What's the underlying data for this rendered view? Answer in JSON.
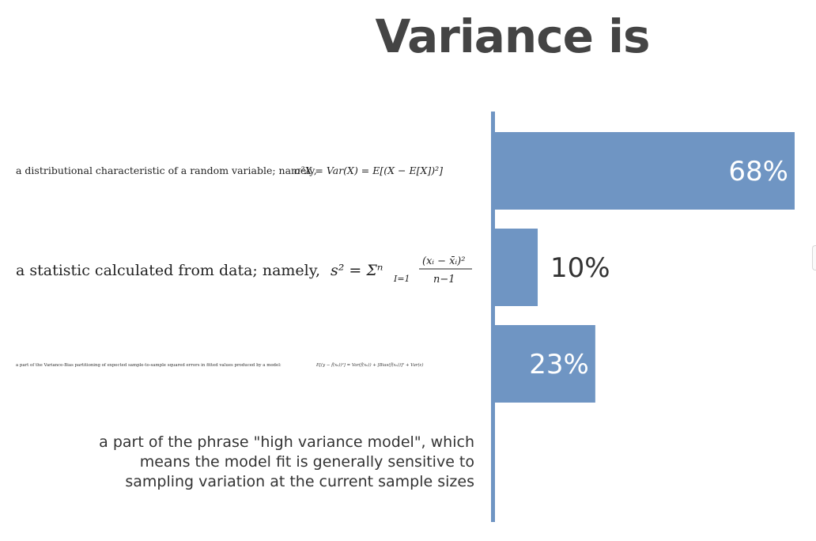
{
  "title": "Variance is",
  "chart_data": {
    "type": "bar",
    "orientation": "horizontal",
    "title": "Variance is",
    "categories": [
      "a distributional characteristic of a random variable; namely, σ²X = Var(X) = E[(X − E[X])²]",
      "a statistic calculated from data; namely, s² = Σⁿ I=1 (xᵢ − x̄ᵢ)² / (n−1)",
      "a part of the Variance-Bias partitioning of expected sample-to-sample squared errors in fitted values produced by a model: E[(y − f̂(x₀))²] = Var(f̂(x₀)) + [Bias(f̂(x₀))]² + Var(ε)",
      "a part of the phrase \"high variance model\", which means the model fit is generally sensitive to sampling variation at the current sample sizes"
    ],
    "values": [
      68,
      10,
      23,
      0
    ],
    "value_labels": [
      "68%",
      "10%",
      "23%",
      ""
    ],
    "xlim": [
      0,
      68
    ],
    "bar_color": "#6f95c3",
    "axis_color": "#6f95c3",
    "label_inside_color": "#ffffff",
    "label_outside_color": "#333333",
    "grid": false,
    "legend": "none"
  },
  "labels": {
    "row1_text": "a distributional characteristic of a random variable; namely,",
    "row1_math": "σ²X = Var(X) = E[(X − E[X])²]",
    "row2_text": "a statistic calculated from data; namely,",
    "row2_math_lhs": "s² = Σⁿ",
    "row2_math_idx": "I=1",
    "row2_math_num": "(xᵢ − x̄ᵢ)²",
    "row2_math_den": "n−1",
    "row3_text": "a part of the Variance-Bias partitioning of expected sample-to-sample squared errors in fitted values produced by a model:",
    "row3_math": "E[(y − f̂(x₀))²] = Var(f̂(x₀)) + [Bias(f̂(x₀))]² + Var(ε)",
    "row4_line1": "a part of the phrase \"high variance model\", which",
    "row4_line2": "means the model fit is generally sensitive to",
    "row4_line3": "sampling variation at the current sample sizes"
  }
}
